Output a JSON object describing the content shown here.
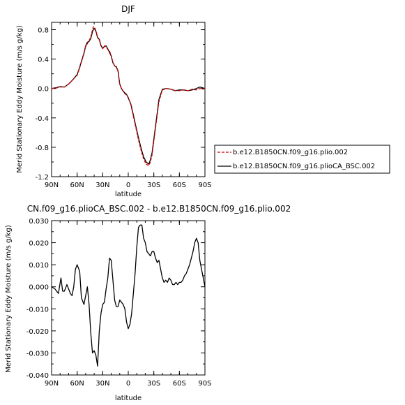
{
  "chart_data": [
    {
      "type": "line",
      "title": "DJF",
      "xlabel": "latitude",
      "ylabel": "Merid Stationary Eddy Moisture (m/s g/kg)",
      "xlim": [
        90,
        -90
      ],
      "ylim": [
        -1.2,
        0.9
      ],
      "xticks": [
        90,
        60,
        30,
        0,
        -30,
        -60,
        -90
      ],
      "xtick_labels": [
        "90N",
        "60N",
        "30N",
        "0",
        "30S",
        "60S",
        "90S"
      ],
      "yticks": [
        0.8,
        0.4,
        0.0,
        -0.4,
        -0.8,
        -1.2
      ],
      "ytick_labels": [
        "0.8",
        "0.4",
        "0.0",
        "-0.4",
        "-0.8",
        "-1.2"
      ],
      "grid": false,
      "legend_placement": "outside-right",
      "series": [
        {
          "name": "b.e12.B1850CN.f09_g16.plio.002",
          "color": "#cc0000",
          "dash": "dashed",
          "x": [
            90,
            85,
            80,
            75,
            70,
            65,
            60,
            57,
            55,
            52,
            50,
            48,
            46,
            44,
            42,
            41,
            40,
            38,
            36,
            34,
            32,
            30,
            28,
            26,
            24,
            22,
            20,
            18,
            16,
            14,
            12,
            10,
            8,
            5,
            2,
            0,
            -3,
            -6,
            -9,
            -12,
            -15,
            -18,
            -21,
            -24,
            -26,
            -28,
            -30,
            -33,
            -36,
            -40,
            -45,
            -50,
            -55,
            -60,
            -65,
            -70,
            -75,
            -80,
            -84,
            -87,
            -90
          ],
          "y": [
            0.0,
            0.005,
            0.02,
            0.02,
            0.06,
            0.12,
            0.18,
            0.28,
            0.36,
            0.47,
            0.57,
            0.61,
            0.65,
            0.7,
            0.8,
            0.84,
            0.84,
            0.79,
            0.7,
            0.66,
            0.59,
            0.54,
            0.58,
            0.57,
            0.53,
            0.51,
            0.45,
            0.36,
            0.3,
            0.3,
            0.23,
            0.05,
            0.0,
            -0.06,
            -0.09,
            -0.12,
            -0.22,
            -0.38,
            -0.54,
            -0.7,
            -0.84,
            -0.96,
            -1.03,
            -1.05,
            -1.0,
            -0.9,
            -0.72,
            -0.45,
            -0.18,
            -0.02,
            0.0,
            -0.01,
            -0.03,
            -0.03,
            -0.02,
            -0.03,
            -0.01,
            -0.02,
            0.0,
            -0.01,
            0.0
          ]
        },
        {
          "name": "b.e12.B1850CN.f09_g16.plioCA_BSC.002",
          "color": "#000000",
          "dash": "solid",
          "x": [
            90,
            85,
            80,
            75,
            70,
            65,
            60,
            57,
            55,
            52,
            50,
            48,
            46,
            44,
            42,
            41,
            40,
            38,
            36,
            34,
            32,
            30,
            28,
            26,
            24,
            22,
            20,
            18,
            16,
            14,
            12,
            10,
            8,
            5,
            2,
            0,
            -3,
            -6,
            -9,
            -12,
            -15,
            -18,
            -21,
            -24,
            -26,
            -28,
            -30,
            -33,
            -36,
            -40,
            -45,
            -50,
            -55,
            -60,
            -65,
            -70,
            -75,
            -80,
            -84,
            -87,
            -90
          ],
          "y": [
            0.0,
            0.01,
            0.025,
            0.02,
            0.06,
            0.12,
            0.19,
            0.29,
            0.37,
            0.48,
            0.58,
            0.63,
            0.64,
            0.68,
            0.77,
            0.8,
            0.82,
            0.78,
            0.69,
            0.67,
            0.58,
            0.55,
            0.57,
            0.58,
            0.54,
            0.49,
            0.44,
            0.35,
            0.31,
            0.29,
            0.24,
            0.06,
            0.0,
            -0.05,
            -0.08,
            -0.13,
            -0.21,
            -0.36,
            -0.52,
            -0.67,
            -0.81,
            -0.93,
            -1.0,
            -1.03,
            -0.97,
            -0.87,
            -0.69,
            -0.42,
            -0.15,
            -0.01,
            0.0,
            -0.01,
            -0.03,
            -0.02,
            -0.02,
            -0.03,
            -0.02,
            0.0,
            0.02,
            0.01,
            0.0
          ]
        }
      ]
    },
    {
      "type": "line",
      "title": "CN.f09_g16.plioCA_BSC.002 - b.e12.B1850CN.f09_g16.plio.002",
      "xlabel": "latitude",
      "ylabel": "Merid Stationary Eddy Moisture (m/s g/kg)",
      "xlim": [
        90,
        -90
      ],
      "ylim": [
        -0.04,
        0.03
      ],
      "xticks": [
        90,
        60,
        30,
        0,
        -30,
        -60,
        -90
      ],
      "xtick_labels": [
        "90N",
        "60N",
        "30N",
        "0",
        "30S",
        "60S",
        "90S"
      ],
      "yticks": [
        0.03,
        0.02,
        0.01,
        0.0,
        -0.01,
        -0.02,
        -0.03,
        -0.04
      ],
      "ytick_labels": [
        "0.030",
        "0.020",
        "0.010",
        "0.000",
        "-0.010",
        "-0.020",
        "-0.030",
        "-0.040"
      ],
      "grid": false,
      "series": [
        {
          "color": "#000000",
          "dash": "solid",
          "x": [
            90,
            86,
            82,
            79,
            77,
            75,
            72,
            70,
            68,
            66,
            64,
            62,
            60,
            57,
            55,
            52,
            50,
            48,
            46,
            44,
            42,
            40,
            38,
            36,
            34,
            32,
            30,
            28,
            26,
            24,
            22,
            20,
            18,
            16,
            14,
            12,
            10,
            8,
            6,
            4,
            2,
            0,
            -2,
            -4,
            -6,
            -8,
            -10,
            -12,
            -14,
            -16,
            -18,
            -20,
            -22,
            -24,
            -26,
            -28,
            -30,
            -32,
            -34,
            -36,
            -38,
            -40,
            -42,
            -44,
            -46,
            -48,
            -50,
            -52,
            -54,
            -56,
            -58,
            -60,
            -62,
            -64,
            -66,
            -68,
            -70,
            -72,
            -74,
            -76,
            -78,
            -80,
            -82,
            -84,
            -86,
            -88,
            -90
          ],
          "y": [
            0.0,
            -0.001,
            -0.003,
            0.004,
            -0.002,
            -0.002,
            0.001,
            -0.001,
            -0.003,
            -0.004,
            0.0,
            0.008,
            0.01,
            0.007,
            -0.005,
            -0.008,
            -0.004,
            0.0,
            -0.008,
            -0.021,
            -0.03,
            -0.029,
            -0.031,
            -0.036,
            -0.02,
            -0.012,
            -0.008,
            -0.007,
            -0.001,
            0.004,
            0.013,
            0.012,
            0.003,
            -0.006,
            -0.009,
            -0.009,
            -0.006,
            -0.007,
            -0.008,
            -0.01,
            -0.016,
            -0.019,
            -0.017,
            -0.012,
            -0.003,
            0.006,
            0.018,
            0.027,
            0.028,
            0.028,
            0.022,
            0.02,
            0.016,
            0.015,
            0.014,
            0.016,
            0.016,
            0.013,
            0.011,
            0.012,
            0.008,
            0.004,
            0.002,
            0.003,
            0.002,
            0.004,
            0.003,
            0.001,
            0.001,
            0.002,
            0.001,
            0.002,
            0.002,
            0.003,
            0.005,
            0.006,
            0.008,
            0.01,
            0.013,
            0.016,
            0.02,
            0.022,
            0.02,
            0.012,
            0.008,
            0.004,
            0.0
          ]
        }
      ]
    }
  ]
}
